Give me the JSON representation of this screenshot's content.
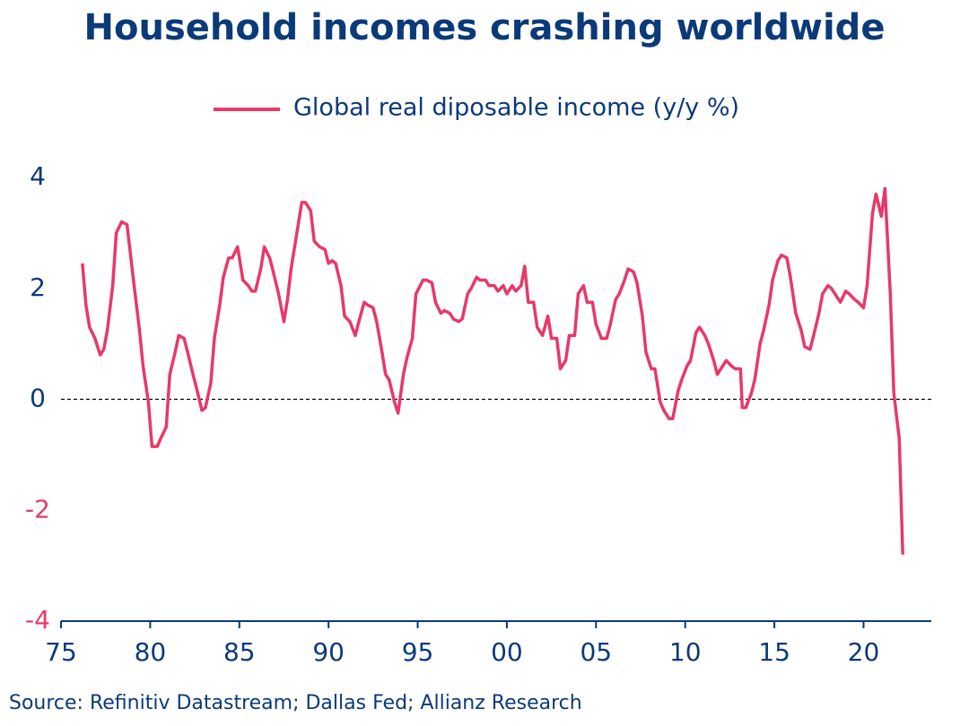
{
  "chart_data": {
    "type": "line",
    "title": "Household incomes crashing worldwide",
    "source": "Source: Refinitiv Datastream; Dallas Fed; Allianz Research",
    "xlim": [
      1975,
      2023.8
    ],
    "ylim": [
      -4,
      4
    ],
    "xticks": [
      {
        "value": 1975,
        "label": "75"
      },
      {
        "value": 1980,
        "label": "80"
      },
      {
        "value": 1985,
        "label": "85"
      },
      {
        "value": 1990,
        "label": "90"
      },
      {
        "value": 1995,
        "label": "95"
      },
      {
        "value": 2000,
        "label": "00"
      },
      {
        "value": 2005,
        "label": "05"
      },
      {
        "value": 2010,
        "label": "10"
      },
      {
        "value": 2015,
        "label": "15"
      },
      {
        "value": 2020,
        "label": "20"
      }
    ],
    "yticks": [
      4,
      2,
      0,
      -2,
      -4
    ],
    "grid": false,
    "zero_line": true,
    "legend": "top",
    "tick_color": "#0b3a78",
    "negative_tick_color": "#e8386a",
    "x": [
      1976.2,
      1976.4,
      1976.6,
      1976.9,
      1977.2,
      1977.4,
      1977.6,
      1977.9,
      1978.1,
      1978.4,
      1978.7,
      1978.9,
      1979.1,
      1979.4,
      1979.6,
      1979.9,
      1980.1,
      1980.4,
      1980.6,
      1980.9,
      1981.1,
      1981.4,
      1981.6,
      1981.9,
      1982.1,
      1982.4,
      1982.6,
      1982.9,
      1983.1,
      1983.4,
      1983.6,
      1983.9,
      1984.1,
      1984.4,
      1984.6,
      1984.9,
      1985.2,
      1985.5,
      1985.7,
      1985.9,
      1986.2,
      1986.4,
      1986.7,
      1986.9,
      1987.2,
      1987.5,
      1987.7,
      1987.9,
      1988.2,
      1988.5,
      1988.7,
      1989,
      1989.2,
      1989.5,
      1989.8,
      1990,
      1990.2,
      1990.4,
      1990.7,
      1990.9,
      1991.2,
      1991.5,
      1991.7,
      1992,
      1992.2,
      1992.5,
      1992.7,
      1993,
      1993.2,
      1993.4,
      1993.7,
      1993.9,
      1994.2,
      1994.4,
      1994.7,
      1994.9,
      1995.3,
      1995.5,
      1995.8,
      1996,
      1996.3,
      1996.5,
      1996.8,
      1997,
      1997.3,
      1997.5,
      1997.8,
      1998,
      1998.3,
      1998.5,
      1998.8,
      1999,
      1999.3,
      1999.5,
      1999.8,
      2000,
      2000.3,
      2000.5,
      2000.8,
      2001,
      2001.2,
      2001.5,
      2001.7,
      2002,
      2002.3,
      2002.5,
      2002.8,
      2003,
      2003.3,
      2003.5,
      2003.8,
      2004,
      2004.3,
      2004.5,
      2004.8,
      2005,
      2005.3,
      2005.6,
      2005.8,
      2006.1,
      2006.3,
      2006.6,
      2006.8,
      2007.1,
      2007.3,
      2007.6,
      2007.8,
      2008.1,
      2008.3,
      2008.6,
      2008.8,
      2009.1,
      2009.3,
      2009.6,
      2009.8,
      2010.1,
      2010.3,
      2010.6,
      2010.8,
      2011.1,
      2011.3,
      2011.6,
      2011.8,
      2012.1,
      2012.3,
      2012.6,
      2012.8,
      2013.1,
      2013.2,
      2013.4,
      2013.7,
      2013.9,
      2014.2,
      2014.4,
      2014.7,
      2014.9,
      2015.2,
      2015.4,
      2015.7,
      2015.9,
      2016.2,
      2016.5,
      2016.7,
      2017,
      2017.2,
      2017.5,
      2017.7,
      2018,
      2018.2,
      2018.5,
      2018.7,
      2019,
      2019.2,
      2019.5,
      2019.7,
      2020,
      2020.2,
      2020.5,
      2020.7,
      2021,
      2021.2,
      2021.5,
      2021.7,
      2022,
      2022.2
    ],
    "series": [
      {
        "name": "Global real diposable income (y/y %)",
        "color": "#e8386a",
        "values": [
          2.45,
          1.7,
          1.3,
          1.1,
          0.8,
          0.9,
          1.25,
          2.05,
          3.0,
          3.2,
          3.15,
          2.6,
          2.05,
          1.25,
          0.6,
          -0.05,
          -0.85,
          -0.85,
          -0.7,
          -0.5,
          0.45,
          0.85,
          1.15,
          1.1,
          0.85,
          0.45,
          0.2,
          -0.2,
          -0.15,
          0.3,
          1.1,
          1.7,
          2.2,
          2.55,
          2.55,
          2.75,
          2.15,
          2.05,
          1.95,
          1.95,
          2.35,
          2.75,
          2.55,
          2.3,
          1.9,
          1.4,
          1.8,
          2.35,
          2.95,
          3.55,
          3.55,
          3.4,
          2.85,
          2.75,
          2.7,
          2.45,
          2.5,
          2.45,
          2.05,
          1.5,
          1.4,
          1.15,
          1.4,
          1.75,
          1.7,
          1.65,
          1.4,
          0.85,
          0.45,
          0.35,
          -0.05,
          -0.25,
          0.45,
          0.75,
          1.1,
          1.9,
          2.15,
          2.15,
          2.1,
          1.75,
          1.55,
          1.6,
          1.55,
          1.45,
          1.4,
          1.45,
          1.9,
          2.0,
          2.2,
          2.15,
          2.15,
          2.05,
          2.05,
          1.95,
          2.05,
          1.9,
          2.05,
          1.95,
          2.05,
          2.4,
          1.75,
          1.75,
          1.3,
          1.15,
          1.5,
          1.1,
          1.1,
          0.55,
          0.7,
          1.15,
          1.15,
          1.9,
          2.05,
          1.75,
          1.75,
          1.35,
          1.1,
          1.1,
          1.35,
          1.8,
          1.9,
          2.15,
          2.35,
          2.3,
          2.1,
          1.5,
          0.85,
          0.55,
          0.55,
          -0.05,
          -0.2,
          -0.35,
          -0.35,
          0.15,
          0.35,
          0.6,
          0.7,
          1.2,
          1.3,
          1.15,
          1.0,
          0.7,
          0.45,
          0.6,
          0.7,
          0.6,
          0.55,
          0.55,
          -0.15,
          -0.15,
          0.1,
          0.35,
          1.0,
          1.25,
          1.7,
          2.15,
          2.5,
          2.6,
          2.55,
          2.2,
          1.55,
          1.25,
          0.95,
          0.9,
          1.15,
          1.55,
          1.9,
          2.05,
          2.0,
          1.85,
          1.75,
          1.95,
          1.9,
          1.8,
          1.75,
          1.65,
          2.05,
          3.35,
          3.7,
          3.3,
          3.8,
          1.9,
          0.1,
          -0.7,
          -2.8
        ]
      }
    ]
  }
}
